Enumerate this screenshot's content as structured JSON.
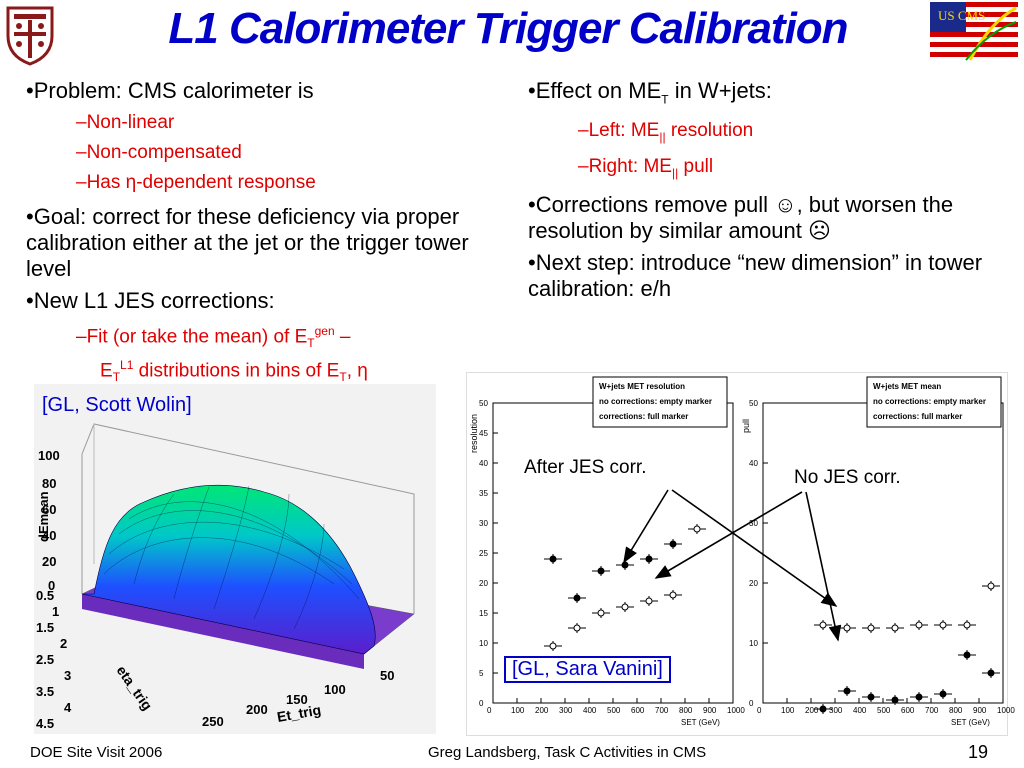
{
  "slide": {
    "title": "L1 Calorimeter Trigger Calibration",
    "logo_right_text": "US CMS"
  },
  "left_column": {
    "b1": "•Problem: CMS calorimeter is",
    "s1": "–Non-linear",
    "s2": "–Non-compensated",
    "s3_pre": "–Has ",
    "s3_sym": "η",
    "s3_post": "-dependent response",
    "b2": "•Goal: correct for these deficiency via proper calibration either at the jet or the trigger tower level",
    "b3": "•New L1 JES corrections:",
    "s4a": "–Fit (or take the mean) of E",
    "s4a_sub": "T",
    "s4a_sup": "gen",
    "s4a_end": " –",
    "s4b": "E",
    "s4b_sub": "T",
    "s4b_sup": "L1",
    "s4b_mid": " distributions in bins of E",
    "s4b_sub2": "T",
    "s4b_end": ", η"
  },
  "right_column": {
    "b1_pre": "•Effect on ME",
    "b1_sub": "T",
    "b1_post": " in W+jets:",
    "s1_pre": "–Left: ME",
    "s1_sub": "||",
    "s1_post": " resolution",
    "s2_pre": "–Right: ME",
    "s2_sub": "||",
    "s2_post": " pull",
    "b2": "•Corrections remove pull ☺, but worsen the resolution by similar amount ☹",
    "b3": "•Next step: introduce “new dimension” in tower calibration: e/h"
  },
  "figure3d": {
    "credit": "[GL, Scott Wolin]",
    "zlabel": "dEmean",
    "xlabel": "Et_trig",
    "ylabel": "eta_trig",
    "zticks": [
      "100",
      "80",
      "60",
      "40",
      "20",
      "0"
    ],
    "yticks": [
      "0.5",
      "1",
      "1.5",
      "2",
      "2.5",
      "3",
      "3.5",
      "4",
      "4.5"
    ],
    "xticks": [
      "50",
      "100",
      "150",
      "200",
      "250"
    ]
  },
  "plots": {
    "credit": "[GL, Sara Vanini]",
    "annotation_after": "After JES corr.",
    "annotation_no": "No JES corr.",
    "left": {
      "legend": [
        "W+jets MET resolution",
        "no corrections: empty marker",
        "corrections: full marker"
      ],
      "ylabel": "resolution",
      "xlabel": "SET (GeV)",
      "yticks": [
        "50",
        "45",
        "40",
        "35",
        "30",
        "25",
        "20",
        "15",
        "10",
        "5",
        "0"
      ],
      "xticks": [
        "0",
        "100",
        "200",
        "300",
        "400",
        "500",
        "600",
        "700",
        "800",
        "900",
        "1000"
      ]
    },
    "right": {
      "legend": [
        "W+jets MET mean",
        "no corrections: empty marker",
        "corrections: full marker"
      ],
      "ylabel": "pull",
      "xlabel": "SET (GeV)",
      "yticks": [
        "50",
        "40",
        "30",
        "20",
        "10",
        "0"
      ],
      "xticks": [
        "0",
        "100",
        "200",
        "300",
        "400",
        "500",
        "600",
        "700",
        "800",
        "900",
        "1000"
      ]
    }
  },
  "chart_data": [
    {
      "type": "scatter",
      "ylabel": "resolution",
      "xlabel": "SET (GeV)",
      "xlim": [
        0,
        1000
      ],
      "ylim": [
        0,
        50
      ],
      "series": [
        {
          "name": "no corrections: empty marker",
          "x": [
            250,
            350,
            450,
            550,
            650,
            750,
            850
          ],
          "y": [
            9.5,
            12.5,
            15,
            16,
            17,
            18,
            29
          ]
        },
        {
          "name": "corrections: full marker",
          "x": [
            250,
            350,
            450,
            550,
            650,
            750
          ],
          "y": [
            24,
            17.5,
            22,
            23,
            24,
            26.5
          ]
        }
      ]
    },
    {
      "type": "scatter",
      "ylabel": "pull",
      "xlabel": "SET (GeV)",
      "xlim": [
        0,
        1000
      ],
      "ylim": [
        0,
        50
      ],
      "series": [
        {
          "name": "no corrections: empty marker",
          "x": [
            250,
            350,
            450,
            550,
            650,
            750,
            850,
            950
          ],
          "y": [
            13,
            12.5,
            12.5,
            12.5,
            13,
            13,
            13,
            19.5
          ]
        },
        {
          "name": "corrections: full marker",
          "x": [
            250,
            350,
            450,
            550,
            650,
            750,
            850,
            950
          ],
          "y": [
            -1,
            2,
            1,
            0.5,
            1,
            1.5,
            8,
            5
          ]
        }
      ]
    }
  ],
  "footer": {
    "left": "DOE Site Visit 2006",
    "center": "Greg Landsberg, Task C Activities in CMS",
    "page": "19"
  },
  "colors": {
    "title": "#0000c8",
    "sub_bullets": "#e00000",
    "credit": "#0000c8"
  }
}
